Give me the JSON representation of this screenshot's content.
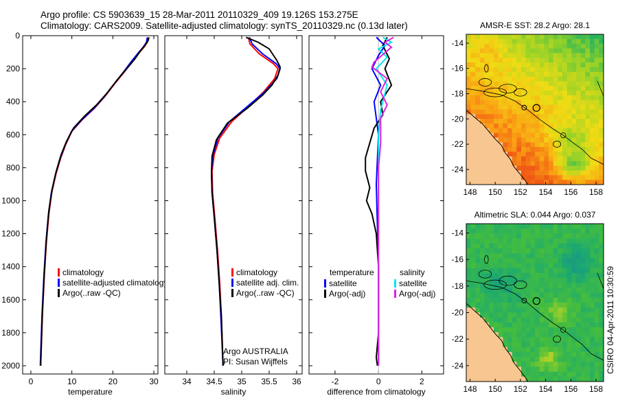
{
  "header": {
    "line1": "Argo profile: CS 5903639_15 28-Mar-2011 20110329_409 19.126S 153.275E",
    "line2": "Climatology: CARS2009. Satellite-adjusted climatology: synTS_20110329.nc (0.13d later)"
  },
  "colors": {
    "climatology": "#ff0000",
    "satellite": "#0000ff",
    "argo": "#000000",
    "sal_satellite": "#00e5ee",
    "sal_argo": "#e020e0"
  },
  "side_credit": "CSIRO 04-Apr-2011 10:30:59",
  "chart_data": [
    {
      "type": "line",
      "id": "temperature",
      "xlabel": "temperature",
      "xlim": [
        -2,
        31
      ],
      "ylim": [
        2050,
        0
      ],
      "xticks": [
        "0",
        "10",
        "20",
        "30"
      ],
      "xtick_values": [
        0,
        10,
        20,
        30
      ],
      "yticks": [
        "0",
        "200",
        "400",
        "600",
        "800",
        "1000",
        "1200",
        "1400",
        "1600",
        "1800",
        "2000"
      ],
      "ytick_values": [
        0,
        200,
        400,
        600,
        800,
        1000,
        1200,
        1400,
        1600,
        1800,
        2000
      ],
      "legend": [
        "climatology",
        "satellite-adjusted climatology",
        "Argo(..raw -QC)"
      ],
      "legend_colors": [
        "#ff0000",
        "#0000ff",
        "#000000"
      ],
      "annotations": [],
      "series": [
        {
          "name": "climatology",
          "color": "#ff0000",
          "points": [
            [
              28.6,
              10
            ],
            [
              28.4,
              40
            ],
            [
              27.6,
              70
            ],
            [
              26.2,
              110
            ],
            [
              24.6,
              160
            ],
            [
              22.8,
              220
            ],
            [
              20.5,
              290
            ],
            [
              18.0,
              370
            ],
            [
              15.5,
              440
            ],
            [
              12.5,
              510
            ],
            [
              10.0,
              580
            ],
            [
              8.5,
              660
            ],
            [
              7.3,
              740
            ],
            [
              6.1,
              840
            ],
            [
              5.1,
              950
            ],
            [
              4.4,
              1080
            ],
            [
              3.8,
              1250
            ],
            [
              3.3,
              1450
            ],
            [
              2.8,
              1700
            ],
            [
              2.4,
              2000
            ]
          ]
        },
        {
          "name": "satellite",
          "color": "#0000ff",
          "points": [
            [
              28.4,
              10
            ],
            [
              28.2,
              40
            ],
            [
              27.4,
              70
            ],
            [
              26.0,
              110
            ],
            [
              24.4,
              160
            ],
            [
              22.6,
              220
            ],
            [
              20.4,
              290
            ],
            [
              17.9,
              370
            ],
            [
              15.4,
              440
            ],
            [
              12.4,
              510
            ],
            [
              9.9,
              580
            ],
            [
              8.4,
              660
            ],
            [
              7.2,
              740
            ],
            [
              6.0,
              840
            ],
            [
              5.0,
              950
            ],
            [
              4.3,
              1080
            ],
            [
              3.7,
              1250
            ],
            [
              3.2,
              1450
            ],
            [
              2.7,
              1700
            ],
            [
              2.3,
              2000
            ]
          ]
        },
        {
          "name": "argo",
          "color": "#000000",
          "points": [
            [
              28.8,
              10
            ],
            [
              28.6,
              30
            ],
            [
              27.8,
              60
            ],
            [
              26.8,
              90
            ],
            [
              25.4,
              140
            ],
            [
              23.4,
              200
            ],
            [
              21.0,
              270
            ],
            [
              18.5,
              350
            ],
            [
              16.0,
              420
            ],
            [
              13.0,
              490
            ],
            [
              10.4,
              560
            ],
            [
              8.7,
              640
            ],
            [
              7.4,
              720
            ],
            [
              6.2,
              820
            ],
            [
              5.2,
              930
            ],
            [
              4.4,
              1060
            ],
            [
              3.8,
              1230
            ],
            [
              3.3,
              1430
            ],
            [
              2.8,
              1680
            ],
            [
              2.4,
              1980
            ],
            [
              2.4,
              2000
            ]
          ]
        }
      ]
    },
    {
      "type": "line",
      "id": "salinity",
      "xlabel": "salinity",
      "xlim": [
        33.6,
        36.1
      ],
      "ylim": [
        2050,
        0
      ],
      "xticks": [
        "34",
        "34.5",
        "35",
        "35.5",
        "36"
      ],
      "xtick_values": [
        34,
        34.5,
        35,
        35.5,
        36
      ],
      "yticks": [],
      "ytick_values": [],
      "legend": [
        "climatology",
        "satellite adj. clim.",
        "Argo(..raw -QC)"
      ],
      "legend_colors": [
        "#ff0000",
        "#0000ff",
        "#000000"
      ],
      "annotations": [
        "Argo AUSTRALIA",
        "PI: Susan Wijffels"
      ],
      "series": [
        {
          "name": "climatology",
          "color": "#ff0000",
          "points": [
            [
              35.12,
              10
            ],
            [
              35.15,
              50
            ],
            [
              35.32,
              110
            ],
            [
              35.58,
              170
            ],
            [
              35.66,
              200
            ],
            [
              35.6,
              260
            ],
            [
              35.4,
              340
            ],
            [
              35.12,
              430
            ],
            [
              34.82,
              520
            ],
            [
              34.6,
              620
            ],
            [
              34.5,
              720
            ],
            [
              34.46,
              820
            ],
            [
              34.47,
              950
            ],
            [
              34.51,
              1100
            ],
            [
              34.56,
              1300
            ],
            [
              34.6,
              1500
            ],
            [
              34.63,
              1700
            ],
            [
              34.66,
              2000
            ]
          ]
        },
        {
          "name": "satellite",
          "color": "#0000ff",
          "points": [
            [
              35.14,
              10
            ],
            [
              35.19,
              50
            ],
            [
              35.38,
              110
            ],
            [
              35.63,
              170
            ],
            [
              35.7,
              200
            ],
            [
              35.64,
              260
            ],
            [
              35.42,
              340
            ],
            [
              35.1,
              430
            ],
            [
              34.78,
              520
            ],
            [
              34.57,
              620
            ],
            [
              34.48,
              720
            ],
            [
              34.45,
              820
            ],
            [
              34.46,
              950
            ],
            [
              34.5,
              1100
            ],
            [
              34.55,
              1300
            ],
            [
              34.59,
              1500
            ],
            [
              34.62,
              1700
            ],
            [
              34.66,
              2000
            ]
          ]
        },
        {
          "name": "argo",
          "color": "#000000",
          "points": [
            [
              35.08,
              10
            ],
            [
              35.3,
              40
            ],
            [
              35.5,
              80
            ],
            [
              35.64,
              150
            ],
            [
              35.7,
              190
            ],
            [
              35.66,
              240
            ],
            [
              35.55,
              300
            ],
            [
              35.38,
              360
            ],
            [
              35.1,
              440
            ],
            [
              34.74,
              530
            ],
            [
              34.54,
              630
            ],
            [
              34.46,
              730
            ],
            [
              34.45,
              830
            ],
            [
              34.46,
              950
            ],
            [
              34.5,
              1100
            ],
            [
              34.55,
              1300
            ],
            [
              34.59,
              1500
            ],
            [
              34.63,
              1700
            ],
            [
              34.66,
              2000
            ]
          ]
        }
      ]
    },
    {
      "type": "line",
      "id": "difference",
      "xlabel": "difference from climatology",
      "xlim": [
        -3.2,
        3.0
      ],
      "ylim": [
        2050,
        0
      ],
      "xticks": [
        "-2",
        "0",
        "2"
      ],
      "xtick_values": [
        -2,
        0,
        2
      ],
      "yticks": [],
      "ytick_values": [],
      "legend": [
        "temperature",
        "salinity",
        "satellite",
        "Argo(-adj)",
        "satellite",
        "Argo(-adj)"
      ],
      "legend_colors": [
        "#000000",
        "#000000",
        "#0000ff",
        "#000000",
        "#00e5ee",
        "#e020e0"
      ],
      "annotations": [],
      "series": [
        {
          "name": "T satellite",
          "color": "#0000ff",
          "points": [
            [
              -0.1,
              10
            ],
            [
              0.3,
              60
            ],
            [
              0.0,
              120
            ],
            [
              -0.3,
              200
            ],
            [
              0.1,
              300
            ],
            [
              -0.2,
              400
            ],
            [
              0.0,
              600
            ],
            [
              -0.1,
              900
            ],
            [
              0.0,
              1400
            ],
            [
              0.0,
              2000
            ]
          ]
        },
        {
          "name": "T Argo(-adj)",
          "color": "#000000",
          "points": [
            [
              0.4,
              10
            ],
            [
              0.2,
              60
            ],
            [
              0.5,
              140
            ],
            [
              0.3,
              200
            ],
            [
              0.6,
              300
            ],
            [
              0.1,
              400
            ],
            [
              0.2,
              480
            ],
            [
              -0.2,
              560
            ],
            [
              -0.4,
              650
            ],
            [
              -0.6,
              740
            ],
            [
              -0.6,
              820
            ],
            [
              -0.4,
              920
            ],
            [
              -0.55,
              1000
            ],
            [
              -0.3,
              1080
            ],
            [
              -0.1,
              1200
            ],
            [
              0.0,
              1400
            ],
            [
              0.0,
              1800
            ],
            [
              -0.1,
              1950
            ],
            [
              -0.05,
              2000
            ]
          ]
        },
        {
          "name": "S satellite",
          "color": "#00e5ee",
          "points": [
            [
              0.2,
              10
            ],
            [
              0.6,
              40
            ],
            [
              0.0,
              80
            ],
            [
              0.4,
              130
            ],
            [
              -0.1,
              200
            ],
            [
              0.4,
              300
            ],
            [
              0.1,
              450
            ],
            [
              0.0,
              600
            ],
            [
              0.0,
              1000
            ],
            [
              0.0,
              2000
            ]
          ]
        },
        {
          "name": "S Argo(-adj)",
          "color": "#e020e0",
          "points": [
            [
              0.7,
              10
            ],
            [
              0.3,
              40
            ],
            [
              0.6,
              70
            ],
            [
              -0.2,
              160
            ],
            [
              -0.3,
              190
            ],
            [
              0.4,
              260
            ],
            [
              0.1,
              340
            ],
            [
              0.4,
              420
            ],
            [
              0.1,
              500
            ],
            [
              0.1,
              650
            ],
            [
              0.0,
              800
            ],
            [
              0.0,
              1000
            ],
            [
              0.0,
              1500
            ],
            [
              0.0,
              2000
            ]
          ]
        }
      ]
    },
    {
      "type": "heatmap",
      "id": "sst_map",
      "title": "AMSR-E SST: 28.2 Argo: 28.1",
      "xticks": [
        "148",
        "150",
        "152",
        "154",
        "156",
        "158"
      ],
      "xtick_values": [
        148,
        150,
        152,
        154,
        156,
        158
      ],
      "yticks": [
        "-14",
        "-16",
        "-18",
        "-20",
        "-22",
        "-24"
      ],
      "ytick_values": [
        -14,
        -16,
        -18,
        -20,
        -22,
        -24
      ],
      "xlim": [
        147.7,
        158.6
      ],
      "ylim": [
        -25.2,
        -13.3
      ],
      "argo_position": [
        153.275,
        -19.126
      ],
      "colormap": "sst"
    },
    {
      "type": "heatmap",
      "id": "sla_map",
      "title": "Altimetric SLA: 0.044 Argo: 0.037",
      "xticks": [
        "148",
        "150",
        "152",
        "154",
        "156",
        "158"
      ],
      "xtick_values": [
        148,
        150,
        152,
        154,
        156,
        158
      ],
      "yticks": [
        "-14",
        "-16",
        "-18",
        "-20",
        "-22",
        "-24"
      ],
      "ytick_values": [
        -14,
        -16,
        -18,
        -20,
        -22,
        -24
      ],
      "xlim": [
        147.7,
        158.6
      ],
      "ylim": [
        -25.2,
        -13.3
      ],
      "argo_position": [
        153.275,
        -19.126
      ],
      "colormap": "sla"
    }
  ]
}
